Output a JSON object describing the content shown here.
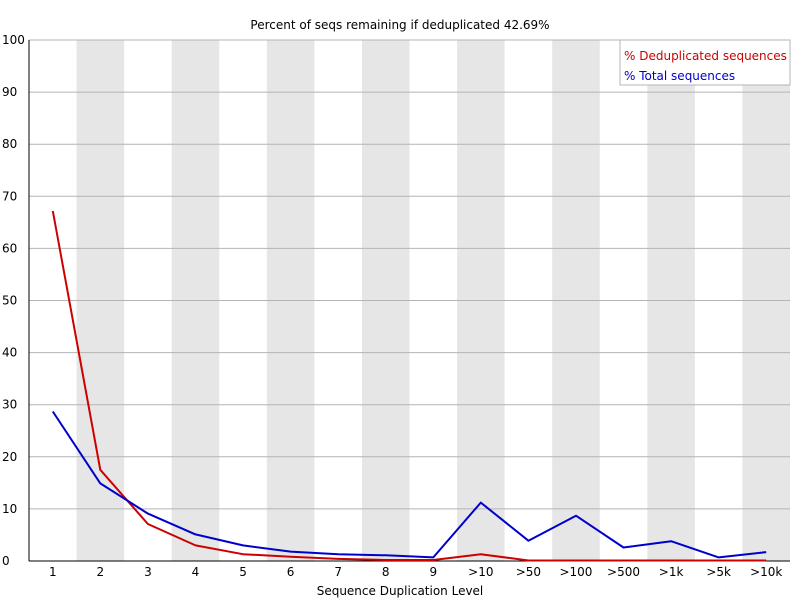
{
  "chart_data": {
    "type": "line",
    "title": "Percent of seqs remaining if deduplicated 42.69%",
    "xlabel": "Sequence Duplication Level",
    "ylabel": "",
    "ylim": [
      0,
      100
    ],
    "yticks": [
      0,
      10,
      20,
      30,
      40,
      50,
      60,
      70,
      80,
      90,
      100
    ],
    "categories": [
      "1",
      "2",
      "3",
      "4",
      "5",
      "6",
      "7",
      "8",
      "9",
      ">10",
      ">50",
      ">100",
      ">500",
      ">1k",
      ">5k",
      ">10k"
    ],
    "grid": "horizontal lines with alternating grey vertical bands",
    "legend_position": "top-right",
    "series": [
      {
        "name": "% Deduplicated sequences",
        "color": "#cc0000",
        "values": [
          67.2,
          17.5,
          7.1,
          3.0,
          1.3,
          0.8,
          0.4,
          0.2,
          0.2,
          1.3,
          0.1,
          0.1,
          0.1,
          0.1,
          0.1,
          0.1
        ]
      },
      {
        "name": "% Total sequences",
        "color": "#0000cc",
        "values": [
          28.7,
          14.9,
          9.1,
          5.1,
          3.0,
          1.8,
          1.3,
          1.1,
          0.7,
          11.2,
          3.9,
          8.7,
          2.6,
          3.8,
          0.7,
          1.7
        ]
      }
    ]
  }
}
